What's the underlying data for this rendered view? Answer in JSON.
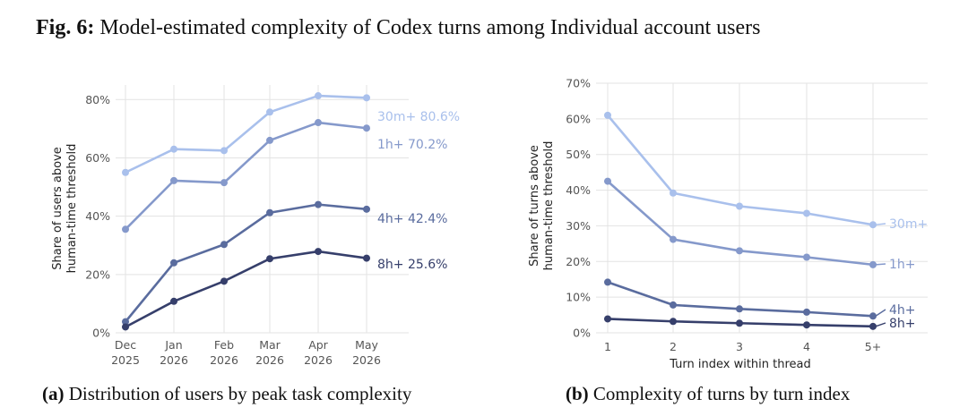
{
  "figure": {
    "title_prefix": "Fig. 6:",
    "title_text": " Model-estimated complexity of Codex turns among Individual account users"
  },
  "captions": {
    "a_prefix": "(a)",
    "a_text": " Distribution of users by peak task complexity",
    "b_prefix": "(b)",
    "b_text": " Complexity of turns by turn index"
  },
  "chart_data": [
    {
      "type": "line",
      "categories": [
        [
          "Dec",
          "2025"
        ],
        [
          "Jan",
          "2026"
        ],
        [
          "Feb",
          "2026"
        ],
        [
          "Mar",
          "2026"
        ],
        [
          "Apr",
          "2026"
        ],
        [
          "May",
          "2026"
        ]
      ],
      "ylabel": [
        "Share of users above",
        "human-time threshold"
      ],
      "xlabel": "",
      "ylim": [
        0,
        85
      ],
      "yticks": [
        0,
        20,
        40,
        60,
        80
      ],
      "ytick_labels": [
        "0%",
        "20%",
        "40%",
        "60%",
        "80%"
      ],
      "grid": true,
      "series": [
        {
          "name": "30m+",
          "end_label": "30m+ 80.6%",
          "color": "#a9c0ec",
          "values": [
            55,
            63,
            62.5,
            75.7,
            81.3,
            80.6
          ]
        },
        {
          "name": "1h+",
          "end_label": "1h+ 70.2%",
          "color": "#8599cb",
          "values": [
            35.5,
            52.2,
            51.5,
            66,
            72.1,
            70.2
          ]
        },
        {
          "name": "4h+",
          "end_label": "4h+ 42.4%",
          "color": "#5a6c9e",
          "values": [
            3.8,
            24,
            30.3,
            41.2,
            44,
            42.4
          ]
        },
        {
          "name": "8h+",
          "end_label": "8h+ 25.6%",
          "color": "#363f6b",
          "values": [
            2,
            10.8,
            17.7,
            25.4,
            27.9,
            25.6
          ]
        }
      ]
    },
    {
      "type": "line",
      "categories": [
        "1",
        "2",
        "3",
        "4",
        "5+"
      ],
      "xlabel": "Turn index within thread",
      "ylabel": [
        "Share of turns above",
        "human-time threshold"
      ],
      "ylim": [
        0,
        70
      ],
      "yticks": [
        0,
        10,
        20,
        30,
        40,
        50,
        60,
        70
      ],
      "ytick_labels": [
        "0%",
        "10%",
        "20%",
        "30%",
        "40%",
        "50%",
        "60%",
        "70%"
      ],
      "grid": true,
      "series": [
        {
          "name": "30m+",
          "end_label": "30m+",
          "color": "#a9c0ec",
          "values": [
            61,
            39.2,
            35.5,
            33.5,
            30.3
          ]
        },
        {
          "name": "1h+",
          "end_label": "1h+",
          "color": "#8599cb",
          "values": [
            42.5,
            26.2,
            23,
            21.2,
            19.1
          ]
        },
        {
          "name": "4h+",
          "end_label": "4h+",
          "color": "#5a6c9e",
          "values": [
            14.2,
            7.8,
            6.7,
            5.8,
            4.7
          ]
        },
        {
          "name": "8h+",
          "end_label": "8h+",
          "color": "#363f6b",
          "values": [
            3.9,
            3.2,
            2.7,
            2.2,
            1.8
          ]
        }
      ]
    }
  ]
}
